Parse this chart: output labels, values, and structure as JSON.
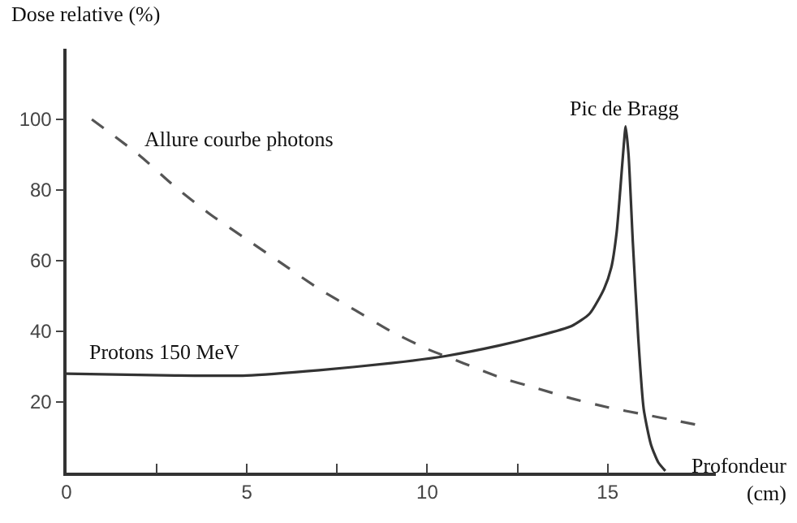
{
  "chart_data": {
    "type": "line",
    "ylabel": "Dose relative (%)",
    "xlabel": "Profondeur\n(cm)",
    "xlim": [
      0,
      18
    ],
    "ylim": [
      0,
      120
    ],
    "xticks": [
      0,
      {
        "value": 2.5,
        "label": null
      },
      5,
      {
        "value": 7.5,
        "label": null
      },
      10,
      {
        "value": 12.5,
        "label": null
      },
      15
    ],
    "yticks": [
      20,
      40,
      60,
      80,
      100
    ],
    "legend": false,
    "marker": "none",
    "annotations": [
      {
        "text": "Pic de Bragg",
        "x": 15.5,
        "y": 98
      }
    ],
    "series": [
      {
        "name": "Allure courbe photons",
        "color": "#555555",
        "line_style": "dashed",
        "x": [
          0.7,
          2,
          3,
          4,
          5,
          6,
          7,
          8,
          9,
          10,
          11,
          12,
          13,
          14,
          15,
          16,
          17,
          17.5
        ],
        "values": [
          100,
          90,
          81,
          73,
          66,
          59,
          52,
          46,
          40,
          35,
          31,
          27,
          24,
          21,
          18.5,
          16.5,
          14.5,
          13.5
        ]
      },
      {
        "name": "Protons 150 MeV",
        "color": "#333333",
        "line_style": "solid",
        "x": [
          0,
          3,
          5,
          7,
          9,
          10.5,
          12,
          13,
          14,
          14.5,
          14.9,
          15.1,
          15.25,
          15.35,
          15.45,
          15.5,
          15.58,
          15.7,
          15.85,
          16,
          16.2,
          16.4,
          16.6
        ],
        "values": [
          28,
          27.5,
          27.5,
          29,
          31,
          33,
          36,
          38.5,
          41.5,
          45,
          52,
          58,
          68,
          80,
          93,
          98,
          90,
          65,
          38,
          18,
          8,
          3,
          0.5
        ]
      }
    ]
  }
}
